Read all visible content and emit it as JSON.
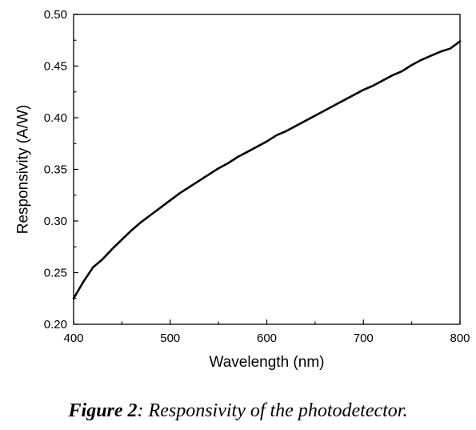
{
  "chart_data": {
    "type": "line",
    "title": "",
    "xlabel": "Wavelength (nm)",
    "ylabel": "Responsivity (A/W)",
    "xlim": [
      400,
      800
    ],
    "ylim": [
      0.2,
      0.5
    ],
    "xticks": [
      "400",
      "500",
      "600",
      "700",
      "800"
    ],
    "yticks": [
      "0.20",
      "0.25",
      "0.30",
      "0.35",
      "0.40",
      "0.45",
      "0.50"
    ],
    "grid": false,
    "legend": "none",
    "line_color": "#000000",
    "series": [
      {
        "x": [
          400,
          410,
          420,
          430,
          440,
          450,
          460,
          470,
          480,
          490,
          500,
          510,
          520,
          530,
          540,
          550,
          560,
          570,
          580,
          590,
          600,
          610,
          620,
          630,
          640,
          650,
          660,
          670,
          680,
          690,
          700,
          710,
          720,
          730,
          740,
          750,
          760,
          770,
          780,
          790,
          800
        ],
        "y": [
          0.225,
          0.241,
          0.255,
          0.263,
          0.273,
          0.282,
          0.291,
          0.299,
          0.306,
          0.313,
          0.32,
          0.327,
          0.333,
          0.339,
          0.345,
          0.351,
          0.356,
          0.362,
          0.367,
          0.372,
          0.377,
          0.383,
          0.387,
          0.392,
          0.397,
          0.402,
          0.407,
          0.412,
          0.417,
          0.422,
          0.427,
          0.431,
          0.436,
          0.441,
          0.445,
          0.451,
          0.456,
          0.46,
          0.464,
          0.467,
          0.474
        ]
      }
    ]
  },
  "caption": {
    "label": "Figure 2",
    "text": ": Responsivity of the photodetector."
  }
}
